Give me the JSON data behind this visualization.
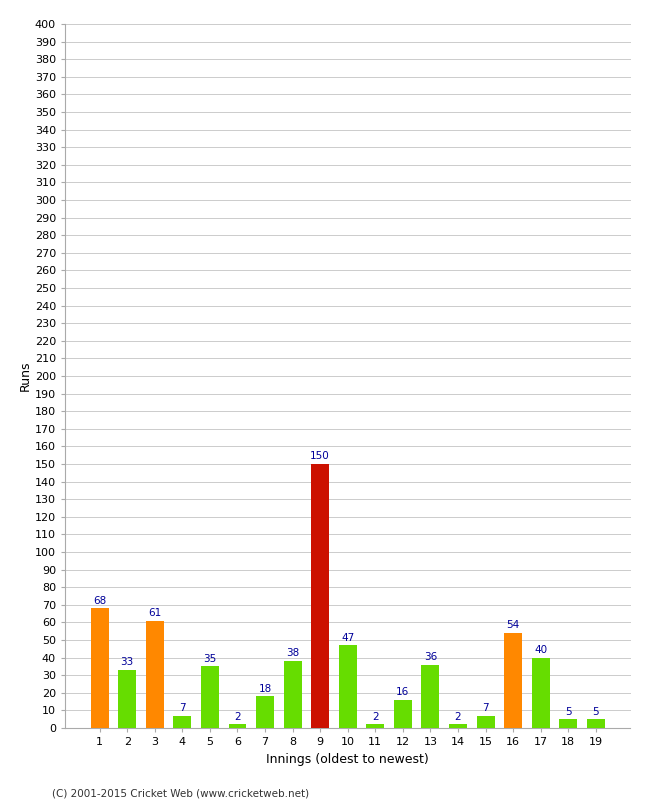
{
  "title": "",
  "xlabel": "Innings (oldest to newest)",
  "ylabel": "Runs",
  "categories": [
    1,
    2,
    3,
    4,
    5,
    6,
    7,
    8,
    9,
    10,
    11,
    12,
    13,
    14,
    15,
    16,
    17,
    18,
    19
  ],
  "values": [
    68,
    33,
    61,
    7,
    35,
    2,
    18,
    38,
    150,
    47,
    2,
    16,
    36,
    2,
    7,
    54,
    40,
    5,
    5
  ],
  "bar_colors": [
    "#ff8800",
    "#66dd00",
    "#ff8800",
    "#66dd00",
    "#66dd00",
    "#66dd00",
    "#66dd00",
    "#66dd00",
    "#cc1100",
    "#66dd00",
    "#66dd00",
    "#66dd00",
    "#66dd00",
    "#66dd00",
    "#66dd00",
    "#ff8800",
    "#66dd00",
    "#66dd00",
    "#66dd00"
  ],
  "ylim": [
    0,
    400
  ],
  "ytick_step": 10,
  "label_color": "#000099",
  "background_color": "#ffffff",
  "grid_color": "#cccccc",
  "footer": "(C) 2001-2015 Cricket Web (www.cricketweb.net)",
  "bar_width": 0.65
}
